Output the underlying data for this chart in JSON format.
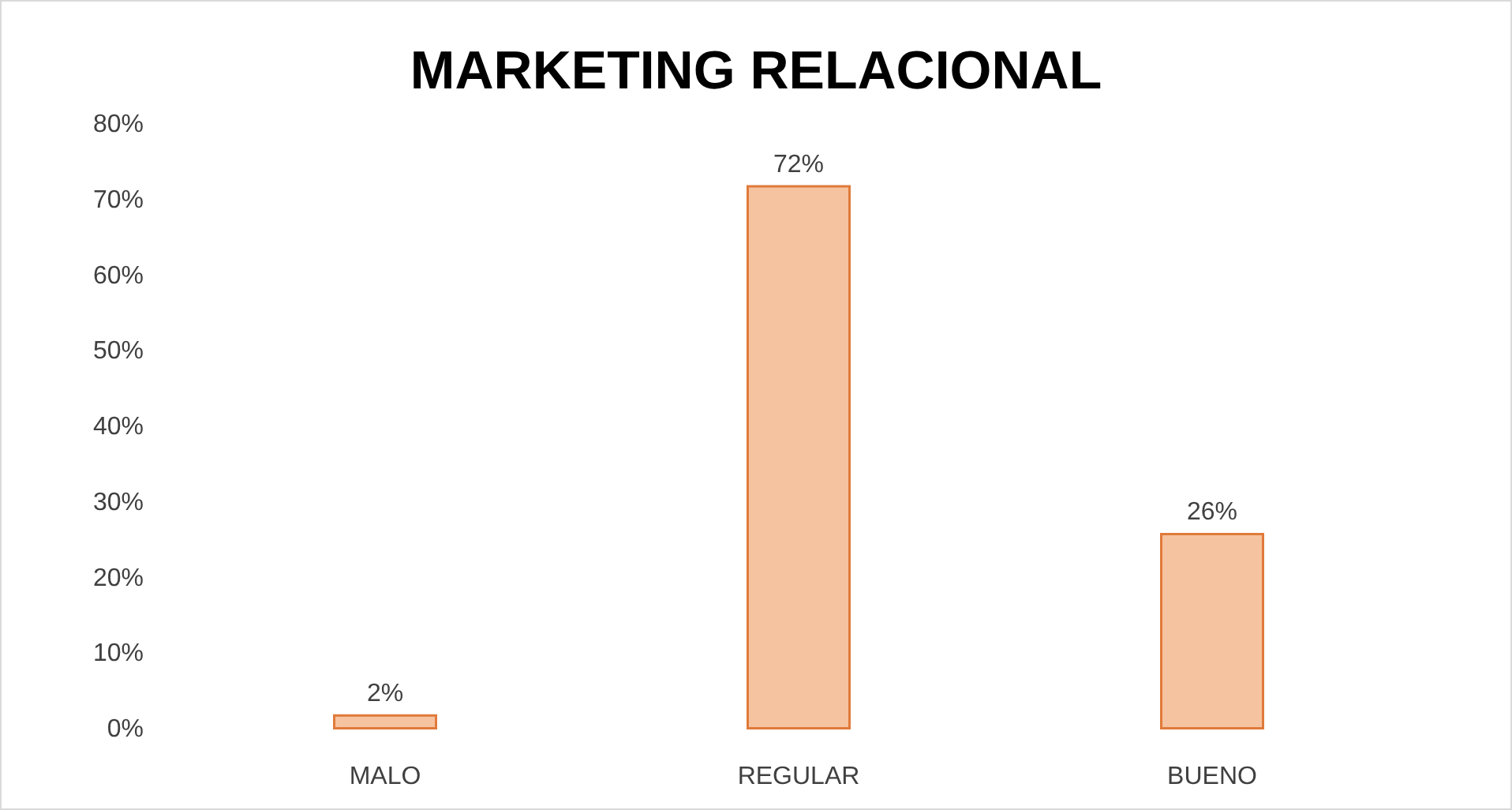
{
  "chart_data": {
    "type": "bar",
    "title": "MARKETING RELACIONAL",
    "categories": [
      "MALO",
      "REGULAR",
      "BUENO"
    ],
    "values": [
      2,
      72,
      26
    ],
    "value_labels": [
      "2%",
      "72%",
      "26%"
    ],
    "color": "#f6c3a0",
    "ylim": [
      0,
      80
    ],
    "yticks": [
      {
        "value": 0,
        "label": "0%"
      },
      {
        "value": 10,
        "label": "10%"
      },
      {
        "value": 20,
        "label": "20%"
      },
      {
        "value": 30,
        "label": "30%"
      },
      {
        "value": 40,
        "label": "40%"
      },
      {
        "value": 50,
        "label": "50%"
      },
      {
        "value": 60,
        "label": "60%"
      },
      {
        "value": 70,
        "label": "70%"
      },
      {
        "value": 80,
        "label": "80%"
      }
    ],
    "grid": false
  }
}
